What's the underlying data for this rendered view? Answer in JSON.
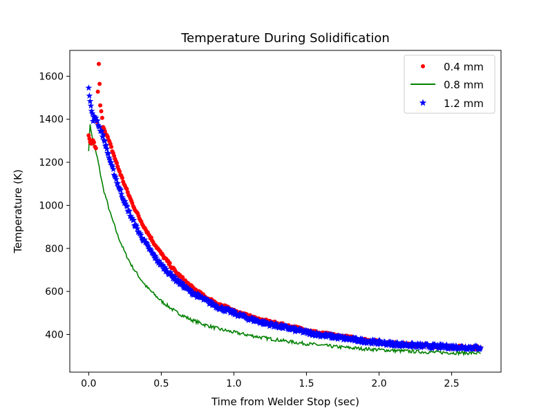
{
  "chart_data": {
    "type": "scatter",
    "title": "Temperature During Solidification",
    "xlabel": "Time from Welder Stop (sec)",
    "ylabel": "Temperature (K)",
    "xlim": [
      -0.13,
      2.84
    ],
    "ylim": [
      225,
      1720
    ],
    "xticks": [
      0.0,
      0.5,
      1.0,
      1.5,
      2.0,
      2.5
    ],
    "xtick_labels": [
      "0.0",
      "0.5",
      "1.0",
      "1.5",
      "2.0",
      "2.5"
    ],
    "yticks": [
      400,
      600,
      800,
      1000,
      1200,
      1400,
      1600
    ],
    "ytick_labels": [
      "400",
      "600",
      "800",
      "1000",
      "1200",
      "1400",
      "1600"
    ],
    "grid": false,
    "legend_position": "top-right",
    "series": [
      {
        "name": "0.4 mm",
        "style": "dots",
        "color": "#ff0000",
        "x": [
          0.0,
          0.01,
          0.02,
          0.03,
          0.05,
          0.07,
          0.08,
          0.1,
          0.15,
          0.2,
          0.25,
          0.3,
          0.35,
          0.4,
          0.45,
          0.5,
          0.6,
          0.7,
          0.8,
          0.9,
          1.0,
          1.1,
          1.2,
          1.3,
          1.4,
          1.5,
          1.6,
          1.7,
          1.8,
          1.9,
          2.0,
          2.1,
          2.2,
          2.3,
          2.4,
          2.5,
          2.6,
          2.7
        ],
        "y": [
          1320,
          1290,
          1280,
          1305,
          1260,
          1655,
          1465,
          1370,
          1280,
          1180,
          1090,
          1010,
          940,
          880,
          825,
          775,
          690,
          625,
          575,
          540,
          510,
          485,
          465,
          450,
          435,
          420,
          405,
          395,
          385,
          375,
          365,
          358,
          352,
          348,
          345,
          342,
          340,
          338
        ]
      },
      {
        "name": "0.8 mm",
        "style": "line",
        "color": "#008000",
        "x": [
          0.0,
          0.01,
          0.02,
          0.04,
          0.06,
          0.08,
          0.1,
          0.15,
          0.2,
          0.25,
          0.3,
          0.35,
          0.4,
          0.5,
          0.6,
          0.7,
          0.8,
          0.9,
          1.0,
          1.1,
          1.2,
          1.3,
          1.4,
          1.5,
          1.6,
          1.7,
          1.8,
          1.9,
          2.0,
          2.1,
          2.2,
          2.3,
          2.4,
          2.5,
          2.6,
          2.7
        ],
        "y": [
          1260,
          1380,
          1330,
          1270,
          1220,
          1150,
          1080,
          960,
          860,
          780,
          715,
          665,
          620,
          555,
          505,
          470,
          445,
          425,
          410,
          397,
          385,
          375,
          365,
          357,
          350,
          343,
          338,
          333,
          329,
          325,
          322,
          319,
          317,
          315,
          314,
          313
        ]
      },
      {
        "name": "1.2 mm",
        "style": "stars",
        "color": "#0000ff",
        "x": [
          0.0,
          0.005,
          0.01,
          0.02,
          0.03,
          0.05,
          0.07,
          0.1,
          0.15,
          0.2,
          0.25,
          0.3,
          0.35,
          0.4,
          0.45,
          0.5,
          0.6,
          0.7,
          0.8,
          0.9,
          1.0,
          1.1,
          1.2,
          1.3,
          1.4,
          1.5,
          1.6,
          1.7,
          1.8,
          1.9,
          2.0,
          2.1,
          2.2,
          2.3,
          2.4,
          2.5,
          2.6,
          2.7
        ],
        "y": [
          1555,
          1510,
          1480,
          1440,
          1400,
          1410,
          1370,
          1320,
          1200,
          1100,
          1010,
          935,
          870,
          815,
          765,
          722,
          655,
          600,
          560,
          525,
          500,
          475,
          455,
          440,
          425,
          410,
          398,
          388,
          378,
          370,
          362,
          356,
          351,
          347,
          344,
          342,
          340,
          338
        ]
      }
    ]
  }
}
